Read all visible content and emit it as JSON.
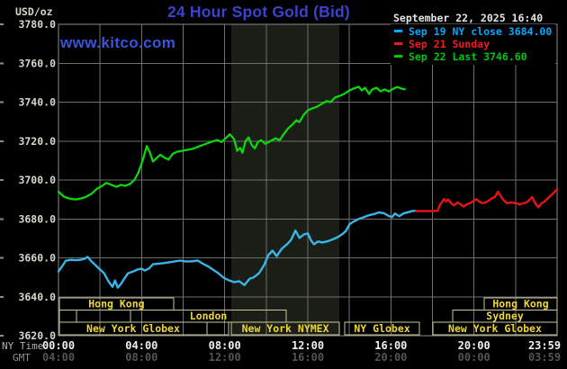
{
  "header": {
    "unit_label": "USD/oz",
    "title": "24 Hour Spot Gold (Bid)",
    "datetime": "September 22, 2025 16:40"
  },
  "watermark": "www.kitco.com",
  "legend": [
    {
      "label": "Sep 19 NY close 3684.00",
      "color": "#00A9FF"
    },
    {
      "label": "Sep 21 Sunday",
      "color": "#F41A1A"
    },
    {
      "label": "Sep 22 Last 3746.60",
      "color": "#00C80A"
    }
  ],
  "axis": {
    "ny_row_label": "NY Time",
    "gmt_row_label": "GMT",
    "y_ticks": [
      "3780.0",
      "3760.0",
      "3740.0",
      "3720.0",
      "3700.0",
      "3680.0",
      "3660.0",
      "3640.0",
      "3620.0"
    ],
    "x_ticks": [
      {
        "h": 0,
        "ny": "00:00",
        "gmt": "04:00"
      },
      {
        "h": 4,
        "ny": "04:00",
        "gmt": "08:00"
      },
      {
        "h": 8,
        "ny": "08:00",
        "gmt": "12:00"
      },
      {
        "h": 12,
        "ny": "12:00",
        "gmt": "16:00"
      },
      {
        "h": 16,
        "ny": "16:00",
        "gmt": "20:00"
      },
      {
        "h": 20,
        "ny": "20:00",
        "gmt": "00:00"
      },
      {
        "h": 23.983,
        "ny": "23:59",
        "gmt": "03:59"
      }
    ]
  },
  "colors": {
    "background": "#000000",
    "grid": "#6F6F6F",
    "border": "#8C8C8C",
    "band": "#1B1E17",
    "edge_tick": "#8A8A8A",
    "y_label": "#D6D6CB",
    "ny_tick_text": "#EFEFEF",
    "gmt_tick_text": "#545454",
    "ny_row_label": "#B2B2B2",
    "gmt_row_label": "#8F8F8F",
    "session_border": "#C9C897",
    "session_text": "#EDD53B"
  },
  "chart_data": {
    "type": "line",
    "title": "24 Hour Spot Gold (Bid)",
    "ylabel": "USD/oz",
    "ylim": [
      3620,
      3780
    ],
    "ytick_interval": 20,
    "xlim_hours": [
      0,
      24
    ],
    "grid_hour_interval": 2,
    "legend_position": "top-right",
    "highlight_band_hours": [
      8.32,
      13.52
    ],
    "series": [
      {
        "name": "Sep 19 NY close 3684.00",
        "color": "#38B6E8",
        "width": 2.4,
        "points": [
          [
            0,
            3653
          ],
          [
            0.2,
            3656
          ],
          [
            0.35,
            3658.5
          ],
          [
            0.6,
            3659
          ],
          [
            0.85,
            3658.8
          ],
          [
            1.05,
            3659
          ],
          [
            1.25,
            3659.5
          ],
          [
            1.4,
            3660.5
          ],
          [
            1.6,
            3658
          ],
          [
            1.8,
            3656
          ],
          [
            2.0,
            3654
          ],
          [
            2.2,
            3652
          ],
          [
            2.4,
            3648
          ],
          [
            2.6,
            3645.1
          ],
          [
            2.72,
            3648.4
          ],
          [
            2.85,
            3644.7
          ],
          [
            3.0,
            3646.5
          ],
          [
            3.15,
            3649
          ],
          [
            3.35,
            3652.1
          ],
          [
            3.6,
            3653
          ],
          [
            3.8,
            3654
          ],
          [
            4.0,
            3654.4
          ],
          [
            4.15,
            3653.5
          ],
          [
            4.35,
            3654.5
          ],
          [
            4.55,
            3656.7
          ],
          [
            4.8,
            3657
          ],
          [
            5.0,
            3657.2
          ],
          [
            5.2,
            3657.5
          ],
          [
            5.5,
            3658
          ],
          [
            5.85,
            3658.6
          ],
          [
            6.1,
            3658.2
          ],
          [
            6.4,
            3658.2
          ],
          [
            6.7,
            3658.6
          ],
          [
            6.95,
            3657
          ],
          [
            7.25,
            3655.3
          ],
          [
            7.5,
            3653.5
          ],
          [
            7.7,
            3652.1
          ],
          [
            7.95,
            3649.8
          ],
          [
            8.2,
            3648.5
          ],
          [
            8.45,
            3647.5
          ],
          [
            8.7,
            3648
          ],
          [
            8.95,
            3646
          ],
          [
            9.2,
            3649.3
          ],
          [
            9.4,
            3650
          ],
          [
            9.65,
            3652.1
          ],
          [
            9.9,
            3656.3
          ],
          [
            10.1,
            3661.4
          ],
          [
            10.3,
            3663.7
          ],
          [
            10.5,
            3660.9
          ],
          [
            10.75,
            3664.7
          ],
          [
            11.0,
            3667
          ],
          [
            11.2,
            3669.3
          ],
          [
            11.4,
            3674
          ],
          [
            11.6,
            3670.2
          ],
          [
            11.8,
            3672
          ],
          [
            12.0,
            3672.6
          ],
          [
            12.15,
            3669
          ],
          [
            12.3,
            3667
          ],
          [
            12.5,
            3668.4
          ],
          [
            12.7,
            3667.9
          ],
          [
            12.95,
            3668.5
          ],
          [
            13.2,
            3669.5
          ],
          [
            13.45,
            3670.7
          ],
          [
            13.7,
            3672.5
          ],
          [
            13.85,
            3674
          ],
          [
            14.0,
            3677.2
          ],
          [
            14.2,
            3678.6
          ],
          [
            14.45,
            3680
          ],
          [
            14.7,
            3680.9
          ],
          [
            14.95,
            3681.9
          ],
          [
            15.2,
            3682.5
          ],
          [
            15.4,
            3683.3
          ],
          [
            15.65,
            3683
          ],
          [
            15.9,
            3681.5
          ],
          [
            16.05,
            3680.9
          ],
          [
            16.2,
            3682.8
          ],
          [
            16.4,
            3681.4
          ],
          [
            16.6,
            3682.8
          ],
          [
            16.85,
            3683.5
          ],
          [
            17.0,
            3684
          ],
          [
            17.2,
            3684.2
          ]
        ]
      },
      {
        "name": "Sep 21 Sunday",
        "color": "#E81414",
        "width": 2.4,
        "points": [
          [
            17.2,
            3684
          ],
          [
            17.6,
            3684
          ],
          [
            18.0,
            3684
          ],
          [
            18.25,
            3684.2
          ],
          [
            18.35,
            3687
          ],
          [
            18.45,
            3688.5
          ],
          [
            18.55,
            3690.2
          ],
          [
            18.65,
            3689
          ],
          [
            18.75,
            3690
          ],
          [
            18.9,
            3688
          ],
          [
            19.05,
            3687
          ],
          [
            19.2,
            3688.5
          ],
          [
            19.35,
            3687.5
          ],
          [
            19.5,
            3686.3
          ],
          [
            19.65,
            3687.5
          ],
          [
            19.8,
            3688
          ],
          [
            19.95,
            3689
          ],
          [
            20.1,
            3690.2
          ],
          [
            20.25,
            3689
          ],
          [
            20.4,
            3688
          ],
          [
            20.55,
            3688.5
          ],
          [
            20.7,
            3689.3
          ],
          [
            20.85,
            3690.5
          ],
          [
            21.0,
            3691.2
          ],
          [
            21.15,
            3694
          ],
          [
            21.3,
            3691.5
          ],
          [
            21.45,
            3689.3
          ],
          [
            21.6,
            3688
          ],
          [
            21.75,
            3688.5
          ],
          [
            21.9,
            3688.3
          ],
          [
            22.05,
            3688
          ],
          [
            22.2,
            3687.4
          ],
          [
            22.35,
            3688
          ],
          [
            22.5,
            3688.3
          ],
          [
            22.65,
            3689.5
          ],
          [
            22.8,
            3691.2
          ],
          [
            22.95,
            3687.9
          ],
          [
            23.1,
            3686
          ],
          [
            23.25,
            3688
          ],
          [
            23.4,
            3689
          ],
          [
            23.55,
            3690.5
          ],
          [
            23.7,
            3692
          ],
          [
            23.85,
            3693.5
          ],
          [
            24.0,
            3695.3
          ]
        ]
      },
      {
        "name": "Sep 22 Last 3746.60",
        "color": "#0CD60C",
        "width": 2.3,
        "points": [
          [
            0,
            3694
          ],
          [
            0.25,
            3691.5
          ],
          [
            0.5,
            3690.5
          ],
          [
            0.8,
            3690
          ],
          [
            1.1,
            3690.5
          ],
          [
            1.35,
            3691.5
          ],
          [
            1.6,
            3693
          ],
          [
            1.85,
            3695.5
          ],
          [
            2.1,
            3697
          ],
          [
            2.3,
            3698.5
          ],
          [
            2.55,
            3697.5
          ],
          [
            2.8,
            3696.5
          ],
          [
            3.0,
            3697.5
          ],
          [
            3.2,
            3697
          ],
          [
            3.45,
            3698
          ],
          [
            3.65,
            3700
          ],
          [
            3.85,
            3704
          ],
          [
            4.05,
            3710
          ],
          [
            4.25,
            3717.5
          ],
          [
            4.4,
            3714
          ],
          [
            4.55,
            3709.5
          ],
          [
            4.75,
            3711.5
          ],
          [
            4.9,
            3713
          ],
          [
            5.1,
            3711.5
          ],
          [
            5.3,
            3710.5
          ],
          [
            5.5,
            3713.5
          ],
          [
            5.7,
            3714.5
          ],
          [
            5.95,
            3715
          ],
          [
            6.2,
            3715.5
          ],
          [
            6.45,
            3716
          ],
          [
            6.7,
            3717
          ],
          [
            6.95,
            3718
          ],
          [
            7.2,
            3719
          ],
          [
            7.45,
            3720
          ],
          [
            7.65,
            3720.5
          ],
          [
            7.85,
            3719.5
          ],
          [
            8.05,
            3721.5
          ],
          [
            8.25,
            3723.5
          ],
          [
            8.45,
            3721
          ],
          [
            8.6,
            3715
          ],
          [
            8.75,
            3716.5
          ],
          [
            8.85,
            3714
          ],
          [
            9.0,
            3720
          ],
          [
            9.15,
            3721.9
          ],
          [
            9.3,
            3718
          ],
          [
            9.45,
            3716.3
          ],
          [
            9.6,
            3719.5
          ],
          [
            9.75,
            3720.5
          ],
          [
            9.95,
            3718.6
          ],
          [
            10.2,
            3720
          ],
          [
            10.45,
            3721.4
          ],
          [
            10.65,
            3720.5
          ],
          [
            10.85,
            3723.7
          ],
          [
            11.05,
            3726.5
          ],
          [
            11.25,
            3728.4
          ],
          [
            11.45,
            3730.7
          ],
          [
            11.6,
            3729.8
          ],
          [
            11.8,
            3733.5
          ],
          [
            12.0,
            3735.8
          ],
          [
            12.2,
            3736.7
          ],
          [
            12.45,
            3737.7
          ],
          [
            12.65,
            3739
          ],
          [
            12.9,
            3740.5
          ],
          [
            13.1,
            3740
          ],
          [
            13.3,
            3742.3
          ],
          [
            13.6,
            3743.5
          ],
          [
            13.8,
            3744.6
          ],
          [
            14.0,
            3746
          ],
          [
            14.2,
            3747
          ],
          [
            14.45,
            3747.9
          ],
          [
            14.6,
            3746
          ],
          [
            14.75,
            3747.4
          ],
          [
            14.95,
            3744.2
          ],
          [
            15.1,
            3746.5
          ],
          [
            15.3,
            3747.4
          ],
          [
            15.5,
            3745.6
          ],
          [
            15.7,
            3746.5
          ],
          [
            15.9,
            3745.5
          ],
          [
            16.1,
            3746.8
          ],
          [
            16.3,
            3747.8
          ],
          [
            16.5,
            3747
          ],
          [
            16.67,
            3746.6
          ]
        ]
      }
    ],
    "sessions": [
      {
        "row": 0,
        "label": "Hong Kong",
        "start": 0.04,
        "end": 5.54
      },
      {
        "row": 0,
        "label": "Hong Kong",
        "start": 20.49,
        "end": 24
      },
      {
        "row": 1,
        "label": "",
        "start": 0.04,
        "end": 0.87
      },
      {
        "row": 1,
        "label": "",
        "start": 0.87,
        "end": 3.47
      },
      {
        "row": 1,
        "label": "London",
        "start": 3.47,
        "end": 10.96
      },
      {
        "row": 1,
        "label": "Sydney",
        "start": 18.98,
        "end": 24
      },
      {
        "row": 2,
        "label": "New York Globex",
        "start": 0.04,
        "end": 7.15
      },
      {
        "row": 2,
        "label": "",
        "start": 7.15,
        "end": 8.19
      },
      {
        "row": 2,
        "label": "New York NYMEX",
        "start": 8.32,
        "end": 13.52
      },
      {
        "row": 2,
        "label": "NY Globex",
        "start": 13.78,
        "end": 17.37
      },
      {
        "row": 2,
        "label": "New York Globex",
        "start": 18.02,
        "end": 24
      }
    ]
  }
}
